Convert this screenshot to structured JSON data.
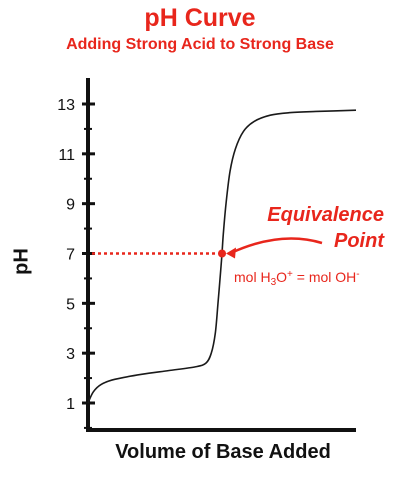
{
  "chart_data": {
    "type": "line",
    "title": "pH Curve",
    "subtitle": "Adding Strong Acid to Strong Base",
    "xlabel": "Volume of Base Added",
    "ylabel": "pH",
    "yticks": [
      1,
      3,
      5,
      7,
      9,
      11,
      13
    ],
    "ylim": [
      0,
      14
    ],
    "xlim": [
      0,
      10
    ],
    "grid": false,
    "series": [
      {
        "x": [
          0,
          0.2,
          0.5,
          1.0,
          2.0,
          3.0,
          4.0,
          4.4,
          4.6,
          4.75,
          4.85,
          4.95,
          5.0,
          5.05,
          5.15,
          5.3,
          5.5,
          5.8,
          6.2,
          6.8,
          7.5,
          8.5,
          10.0
        ],
        "y": [
          1.0,
          1.45,
          1.75,
          1.95,
          2.15,
          2.3,
          2.45,
          2.6,
          3.0,
          3.8,
          5.0,
          6.3,
          7.0,
          7.8,
          9.0,
          10.3,
          11.2,
          11.9,
          12.3,
          12.55,
          12.65,
          12.7,
          12.75
        ]
      }
    ],
    "annotations": {
      "equivalence_line1": "Equivalence",
      "equivalence_line2": "Point",
      "equivalence_x": 5.0,
      "equivalence_y": 7,
      "formula_prefix": "mol H",
      "formula_sub": "3",
      "formula_mid": "O",
      "formula_sup1": "+",
      "formula_eq": " = mol OH",
      "formula_sup2": "-"
    }
  },
  "colors": {
    "title": "#e8261c",
    "accent": "#e8261c",
    "curve": "#1a1a1a",
    "axis": "#111111"
  }
}
